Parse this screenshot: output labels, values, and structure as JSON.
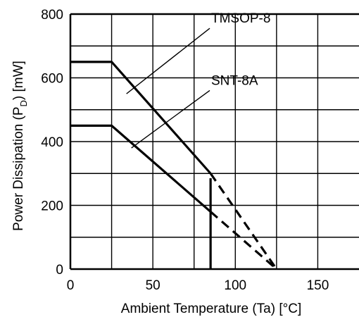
{
  "chart_data": {
    "type": "line",
    "title": "",
    "xlabel": "Ambient Temperature (Ta) [°C]",
    "ylabel_main": "Power Dissipation (P",
    "ylabel_sub": "D",
    "ylabel_tail": ") [mW]",
    "xlim": [
      0,
      175
    ],
    "ylim": [
      0,
      800
    ],
    "x_ticks": [
      0,
      50,
      100,
      150
    ],
    "y_ticks": [
      0,
      200,
      400,
      600,
      800
    ],
    "x_grid": [
      25,
      50,
      75,
      100,
      125,
      150
    ],
    "y_grid": [
      100,
      200,
      300,
      400,
      500,
      600,
      700
    ],
    "grid": true,
    "legend": "none",
    "series": [
      {
        "name": "TMSOP-8",
        "solid": [
          [
            0,
            650
          ],
          [
            25,
            650
          ],
          [
            85,
            300
          ]
        ],
        "dashed": [
          [
            85,
            300
          ],
          [
            125,
            0
          ]
        ],
        "label_point": [
          34,
          550
        ],
        "label_anchor": [
          40,
          740
        ]
      },
      {
        "name": "SNT-8A",
        "solid": [
          [
            0,
            450
          ],
          [
            25,
            450
          ],
          [
            85,
            180
          ]
        ],
        "dashed": [
          [
            85,
            180
          ],
          [
            125,
            0
          ]
        ],
        "label_point": [
          37,
          380
        ],
        "label_anchor": [
          40,
          545
        ]
      }
    ],
    "vertical_marker": {
      "x": 85,
      "y_top": 285,
      "y_bottom": 0
    },
    "colors": {
      "line": "#000000",
      "grid": "#000000",
      "background": "#ffffff"
    }
  }
}
